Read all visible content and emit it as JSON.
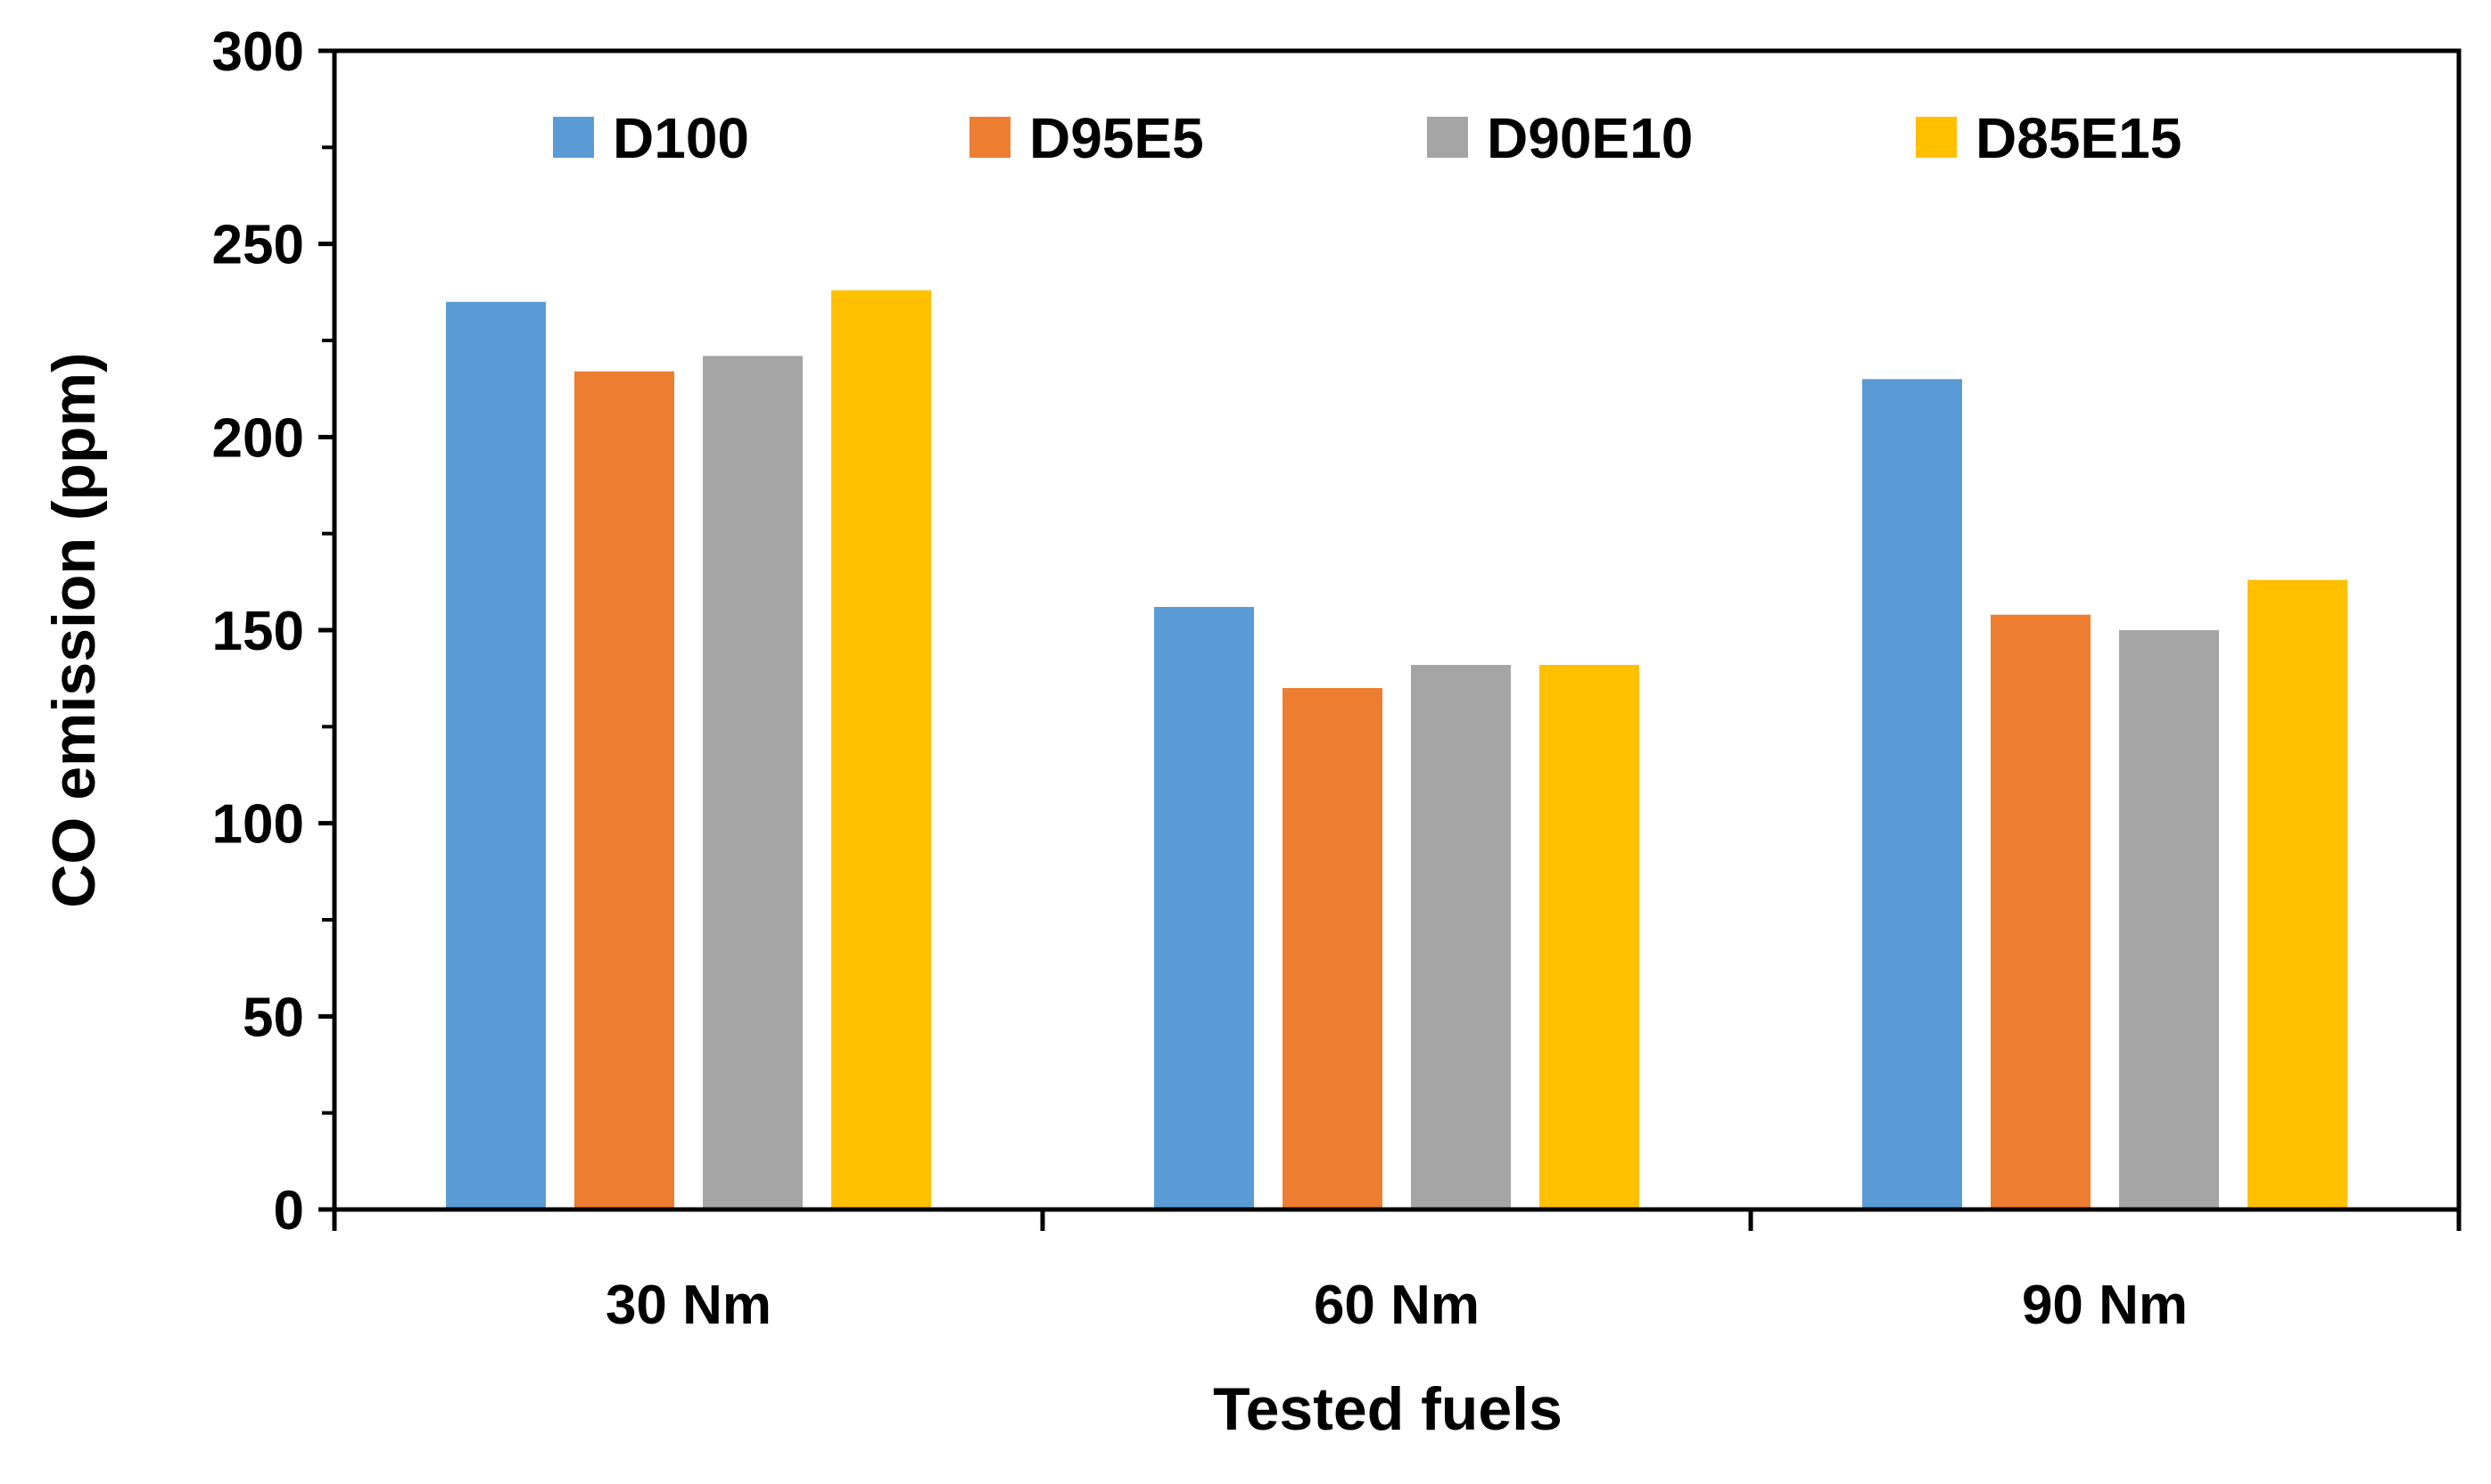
{
  "chart_data": {
    "type": "bar",
    "title": "",
    "xlabel": "Tested fuels",
    "ylabel": "CO emission (ppm)",
    "categories": [
      "30 Nm",
      "60 Nm",
      "90 Nm"
    ],
    "ylim": [
      0,
      300
    ],
    "yticks": [
      0,
      50,
      100,
      150,
      200,
      250,
      300
    ],
    "grid": false,
    "legend_position": "top",
    "series": [
      {
        "name": "D100",
        "color": "#5B9BD5",
        "values": [
          235,
          156,
          215
        ]
      },
      {
        "name": "D95E5",
        "color": "#ED7D31",
        "values": [
          217,
          135,
          154
        ]
      },
      {
        "name": "D90E10",
        "color": "#A5A5A5",
        "values": [
          221,
          141,
          150
        ]
      },
      {
        "name": "D85E15",
        "color": "#FFC000",
        "values": [
          238,
          141,
          163
        ]
      }
    ]
  }
}
